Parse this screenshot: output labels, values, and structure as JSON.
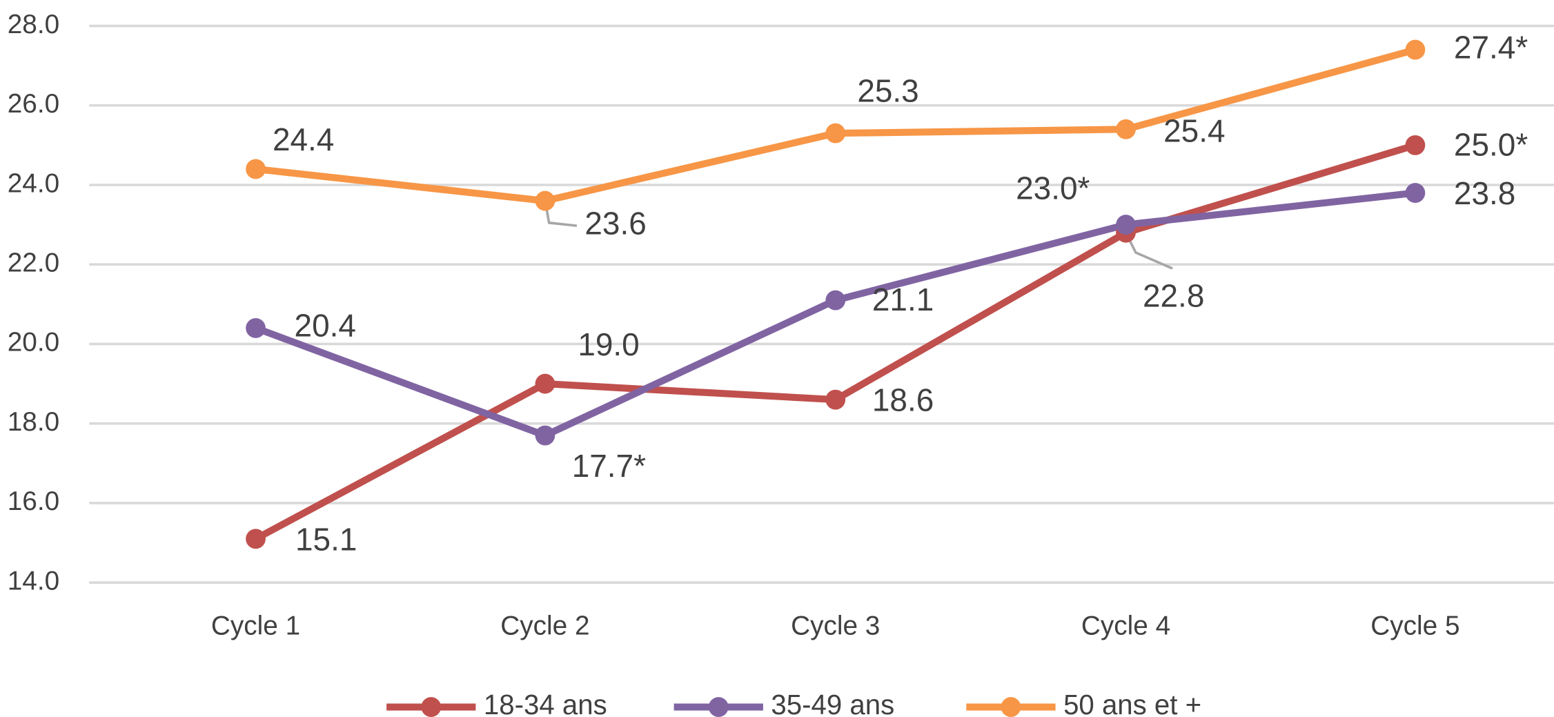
{
  "chart_data": {
    "type": "line",
    "categories": [
      "Cycle 1",
      "Cycle 2",
      "Cycle 3",
      "Cycle 4",
      "Cycle 5"
    ],
    "series": [
      {
        "name": "18-34 ans",
        "color": "#c0504d",
        "values": [
          15.1,
          19.0,
          18.6,
          22.8,
          25.0
        ],
        "value_labels": [
          "15.1",
          "19.0",
          "18.6",
          "22.8",
          "25.0*"
        ]
      },
      {
        "name": "35-49 ans",
        "color": "#8064a2",
        "values": [
          20.4,
          17.7,
          21.1,
          23.0,
          23.8
        ],
        "value_labels": [
          "20.4",
          "17.7*",
          "21.1",
          "23.0*",
          "23.8"
        ]
      },
      {
        "name": "50 ans et +",
        "color": "#f79646",
        "values": [
          24.4,
          23.6,
          25.3,
          25.4,
          27.4
        ],
        "value_labels": [
          "24.4",
          "23.6",
          "25.3",
          "25.4",
          "27.4*"
        ]
      }
    ],
    "ylim": [
      14,
      28
    ],
    "yticks": [
      {
        "value": 14,
        "label": "14.0"
      },
      {
        "value": 16,
        "label": "16.0"
      },
      {
        "value": 18,
        "label": "18.0"
      },
      {
        "value": 20,
        "label": "20.0"
      },
      {
        "value": 22,
        "label": "22.0"
      },
      {
        "value": 24,
        "label": "24.0"
      },
      {
        "value": 26,
        "label": "26.0"
      },
      {
        "value": 28,
        "label": "28.0"
      }
    ],
    "grid": true,
    "legend": "bottom"
  }
}
